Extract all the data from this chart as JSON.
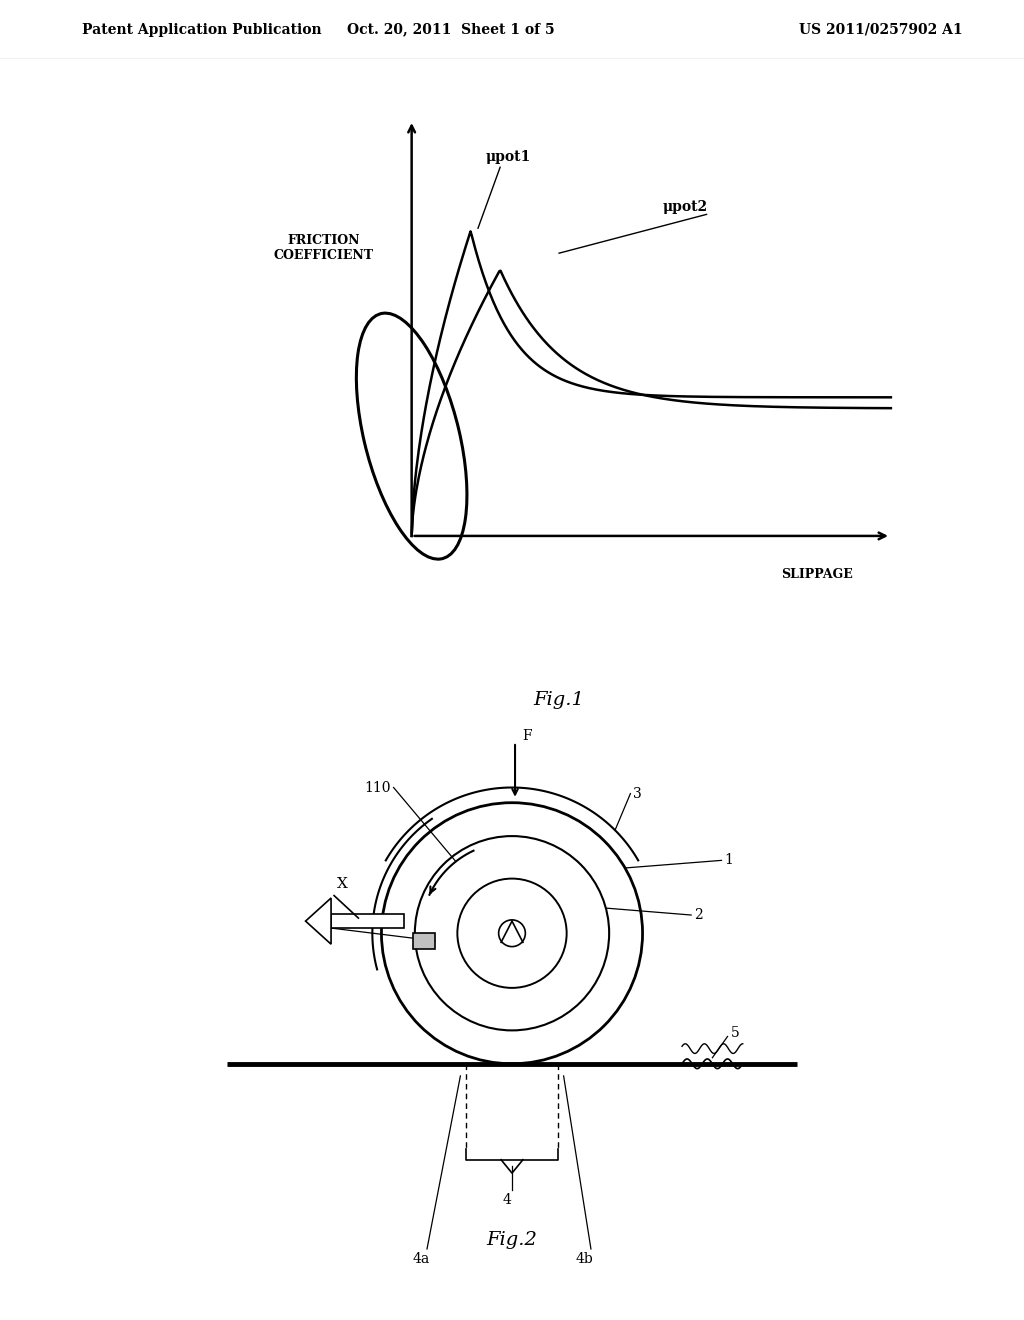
{
  "bg_color": "#ffffff",
  "header_left": "Patent Application Publication",
  "header_mid": "Oct. 20, 2011  Sheet 1 of 5",
  "header_right": "US 2011/0257902 A1",
  "fig1_label": "Fig.1",
  "fig1_ylabel": "FRICTION\nCOEFFICIENT",
  "fig1_xlabel": "SLIPPAGE",
  "fig1_mu1": "μpot1",
  "fig1_mu2": "μpot2",
  "fig2_label": "Fig.2"
}
